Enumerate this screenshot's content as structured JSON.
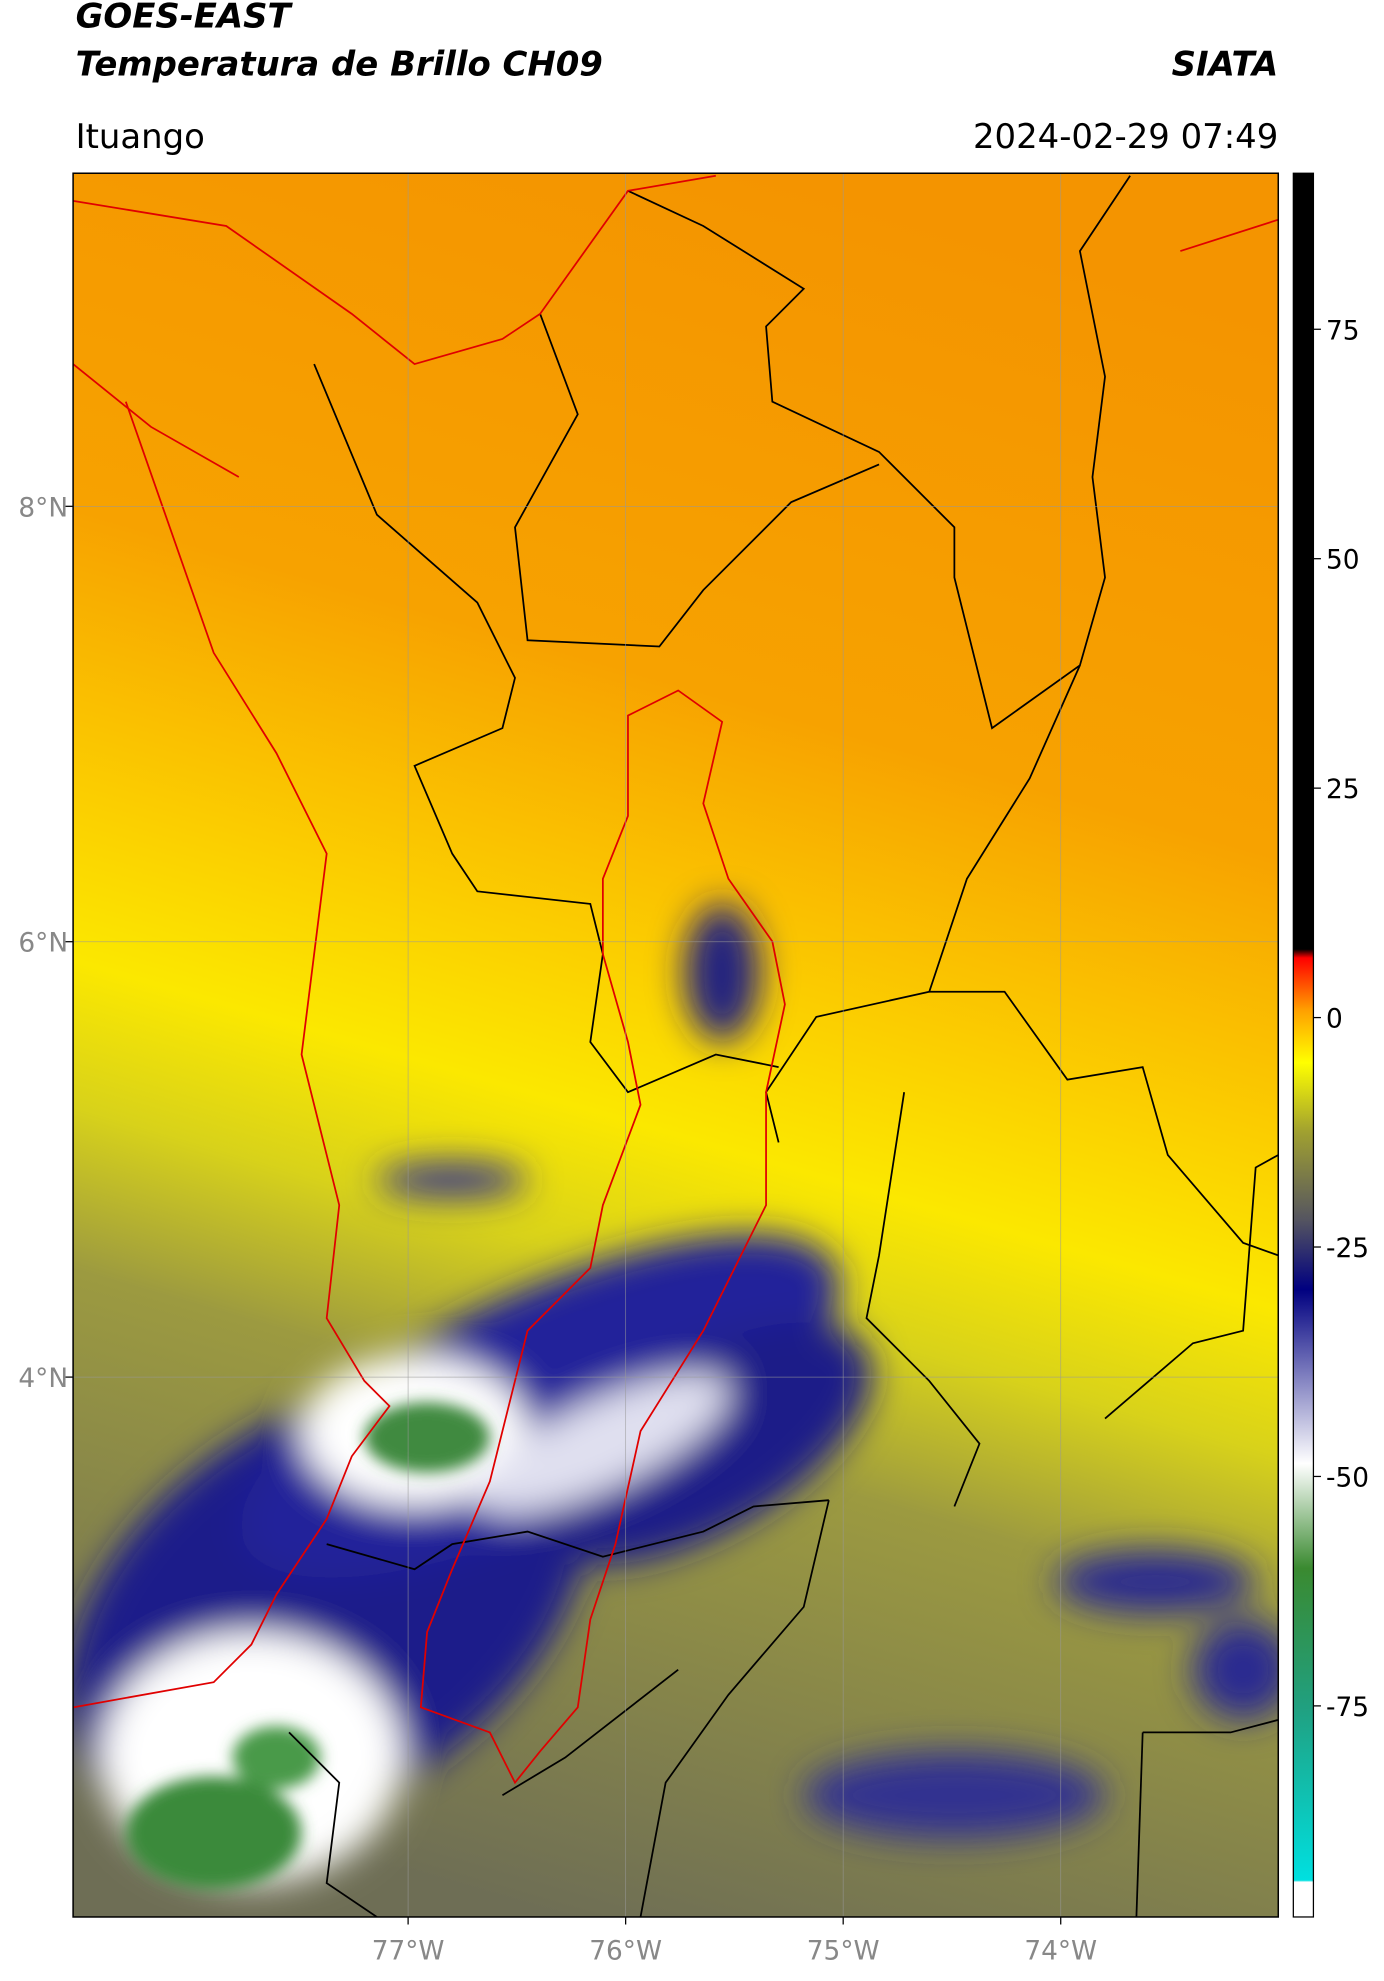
{
  "header": {
    "title": "GOES-EAST",
    "subtitle": "Temperatura de Brillo CH09",
    "agency": "SIATA",
    "place": "Ituango",
    "datetime": "2024-02-29 07:49"
  },
  "map": {
    "xlim": [
      -78.54,
      -73.0
    ],
    "ylim": [
      1.52,
      9.53
    ],
    "xticks": [
      {
        "value": -77,
        "label": "77°W"
      },
      {
        "value": -76,
        "label": "76°W"
      },
      {
        "value": -75,
        "label": "75°W"
      },
      {
        "value": -74,
        "label": "74°W"
      }
    ],
    "yticks": [
      {
        "value": 8,
        "label": "8°N"
      },
      {
        "value": 6,
        "label": "6°N"
      },
      {
        "value": 4,
        "label": "4°N"
      }
    ],
    "grid": true
  },
  "colorbar": {
    "lim": [
      -98,
      92
    ],
    "ticks": [
      75,
      50,
      25,
      0,
      -25,
      -50,
      -75
    ]
  }
}
